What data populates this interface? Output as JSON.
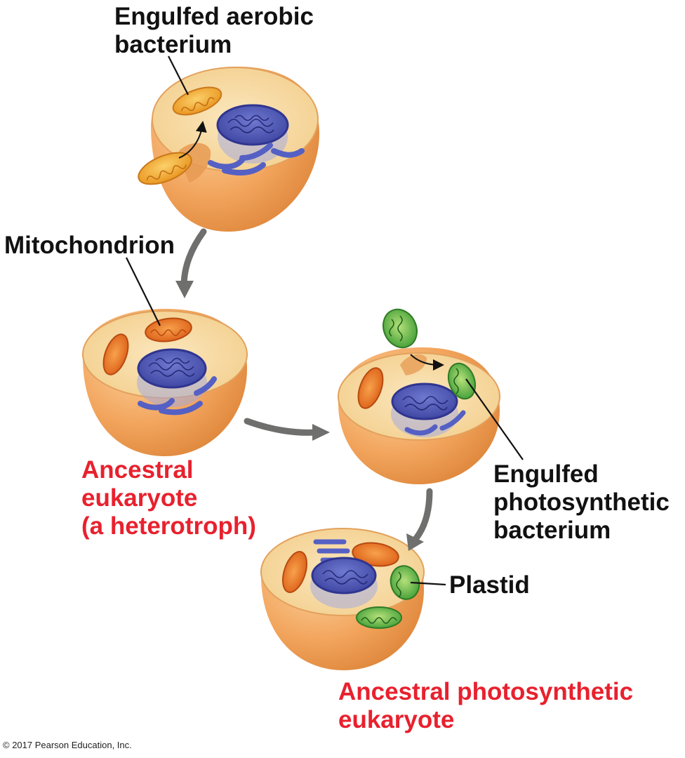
{
  "labels": {
    "engulfed_aerobic": [
      "Engulfed aerobic",
      "bacterium"
    ],
    "mitochondrion": "Mitochondrion",
    "ancestral_heterotroph": [
      "Ancestral",
      "eukaryote",
      "(a heterotroph)"
    ],
    "engulfed_photosynthetic": [
      "Engulfed",
      "photosynthetic",
      "bacterium"
    ],
    "plastid": "Plastid",
    "ancestral_photosynthetic": [
      "Ancestral photosynthetic",
      "eukaryote"
    ]
  },
  "credit": "© 2017 Pearson Education, Inc.",
  "colors": {
    "label_text": "#111111",
    "highlight_text": "#e8212e",
    "cell_body": "#f0a35a",
    "cell_interior": "#f7d79a",
    "nucleus": "#4c56b8",
    "mitochondrion": "#ea7a25",
    "aerobic_bacterium": "#f3a92c",
    "plastid": "#58b34a",
    "arrow": "#6f706e"
  }
}
